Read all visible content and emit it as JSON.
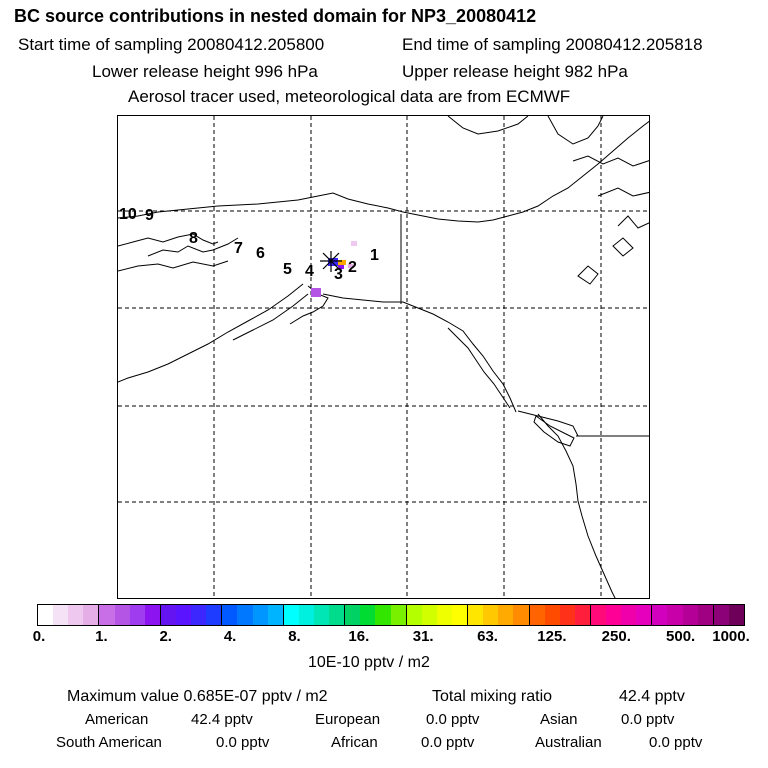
{
  "header": {
    "title": "BC  source contributions in nested domain for NP3_20080412",
    "start_time": "Start time of sampling 20080412.205800",
    "end_time": "End time of sampling 20080412.205818",
    "lower_release": "Lower release height  996 hPa",
    "upper_release": "Upper release height  982 hPa",
    "tracer_info": "Aerosol tracer used, meteorological data are from ECMWF"
  },
  "map": {
    "day_markers": [
      "1",
      "2",
      "3",
      "4",
      "5",
      "6",
      "7",
      "8",
      "9",
      "10"
    ],
    "receptor_icon": "star-icon"
  },
  "colorbar": {
    "tick_labels": [
      "0.",
      "1.",
      "2.",
      "4.",
      "8.",
      "16.",
      "31.",
      "63.",
      "125.",
      "250.",
      "500.",
      "1000."
    ],
    "colors": [
      "#ffffff",
      "#f6e2f6",
      "#eec8ee",
      "#e6aee6",
      "#c86ee6",
      "#b455e6",
      "#a03cf0",
      "#8c14f0",
      "#6414f0",
      "#5a14ff",
      "#3c28ff",
      "#1e3cff",
      "#005aff",
      "#0078ff",
      "#0096ff",
      "#00b4ff",
      "#00ffff",
      "#00f0e0",
      "#00e6b4",
      "#00dc8c",
      "#00d264",
      "#00dc32",
      "#32e600",
      "#78f000",
      "#b4ff00",
      "#d2ff00",
      "#f0ff00",
      "#ffff00",
      "#ffe600",
      "#ffc800",
      "#ffaa00",
      "#ff8c00",
      "#ff6400",
      "#ff4b00",
      "#ff3219",
      "#ff1e3c",
      "#ff0a78",
      "#ff0096",
      "#f000aa",
      "#e600be",
      "#d200be",
      "#c800aa",
      "#b40096",
      "#a00082",
      "#8c0078",
      "#6e005a"
    ],
    "unit": "10E-10 pptv / m2"
  },
  "summary": {
    "max_value_label": "Maximum value  0.685E-07 pptv / m2",
    "total_mixing_label": "Total mixing ratio",
    "total_mixing_value": "42.4 pptv",
    "american_label": "American",
    "american_value": "42.4 pptv",
    "european_label": "European",
    "european_value": "0.0 pptv",
    "asian_label": "Asian",
    "asian_value": "0.0 pptv",
    "south_american_label": "South American",
    "south_american_value": "0.0 pptv",
    "african_label": "African",
    "african_value": "0.0 pptv",
    "australian_label": "Australian",
    "australian_value": "0.0 pptv"
  }
}
